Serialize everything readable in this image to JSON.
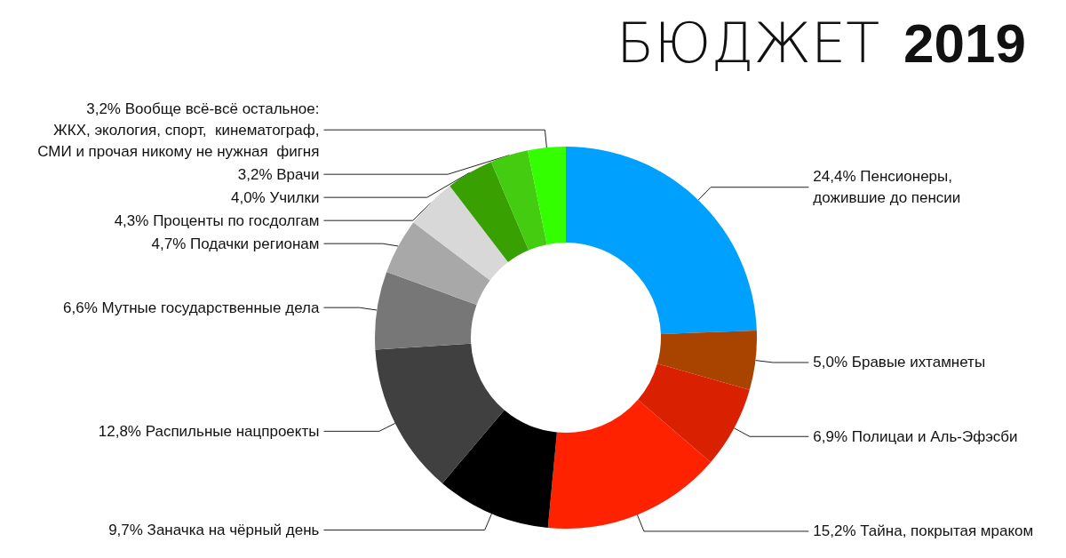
{
  "chart_data": {
    "type": "donut",
    "title": "БЮДЖЕТ 2019",
    "categories": [
      "Пенсионеры,\nдожившие до пенсии",
      "Бравые ихтамнеты",
      "Полицаи и Аль-Эфэсби",
      "Тайна, покрытая мраком",
      "Заначка на чёрный день",
      "Распильные нацпроекты",
      "Мутные государственные дела",
      "Подачки регионам",
      "Проценты по госдолгам",
      "Училки",
      "Врачи",
      "Вообще всё-всё остальное:\nЖКХ, экология, спорт,  кинематограф,\nСМИ и прочая никому не нужная  фигня"
    ],
    "values": [
      24.4,
      5.0,
      6.9,
      15.2,
      9.7,
      12.8,
      6.6,
      4.7,
      4.3,
      4.0,
      3.2,
      3.2
    ],
    "value_labels": [
      "24,4%",
      "5,0%",
      "6,9%",
      "15,2%",
      "9,7%",
      "12,8%",
      "6,6%",
      "4,7%",
      "4,3%",
      "4,0%",
      "3,2%",
      "3,2%"
    ],
    "colors": [
      "#00a0ff",
      "#a84300",
      "#d92000",
      "#ff2200",
      "#000000",
      "#404040",
      "#777777",
      "#a8a8a8",
      "#d8d8d8",
      "#38a000",
      "#44cc10",
      "#33ff00"
    ]
  }
}
